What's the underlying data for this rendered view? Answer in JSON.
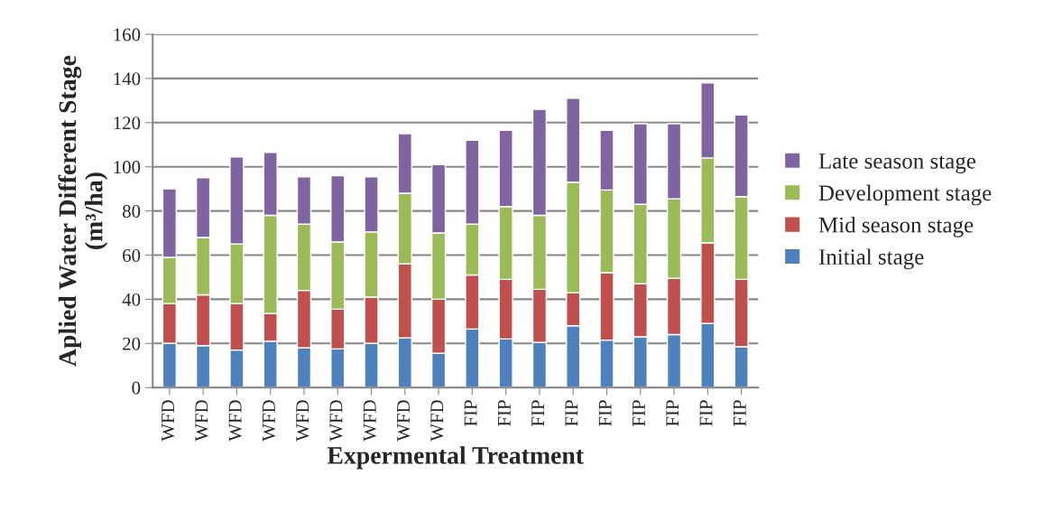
{
  "chart_data": {
    "type": "bar",
    "stacked": true,
    "xlabel": "Expermental Treatment",
    "ylabel": "Aplied Water Different Stage\n(m³/ha)",
    "categories": [
      "WFD",
      "WFD",
      "WFD",
      "WFD",
      "WFD",
      "WFD",
      "WFD",
      "WFD",
      "WFD",
      "FIP",
      "FIP",
      "FIP",
      "FIP",
      "FIP",
      "FIP",
      "FIP",
      "FIP",
      "FIP"
    ],
    "series": [
      {
        "name": "Initial stage",
        "color": "#4f81bd",
        "values": [
          20,
          19,
          17,
          21,
          18,
          17.5,
          20,
          22.5,
          15.5,
          26.5,
          22,
          20.5,
          28,
          21.5,
          23,
          24,
          29,
          18.5
        ]
      },
      {
        "name": "Mid season stage",
        "color": "#c0504d",
        "values": [
          18,
          23,
          21,
          12.5,
          26,
          18,
          21,
          33.5,
          24.5,
          24.5,
          27,
          24,
          15,
          30.5,
          24,
          25.5,
          36.5,
          30.5
        ]
      },
      {
        "name": "Development stage",
        "color": "#9bbb59",
        "values": [
          21,
          26,
          27,
          44.5,
          30,
          30.5,
          29.5,
          32,
          30,
          23,
          33,
          33.5,
          50,
          37.5,
          36,
          36,
          38.5,
          37.5
        ]
      },
      {
        "name": "Late season stage",
        "color": "#8064a2",
        "values": [
          31,
          27,
          39.5,
          28.5,
          21.5,
          30,
          25,
          27,
          31,
          38,
          34.5,
          48,
          38,
          27,
          36.5,
          34,
          34,
          37
        ]
      }
    ],
    "ylim": [
      0,
      160
    ],
    "yticks": [
      0,
      20,
      40,
      60,
      80,
      100,
      120,
      140,
      160
    ],
    "grid": "y",
    "legend": "right"
  }
}
